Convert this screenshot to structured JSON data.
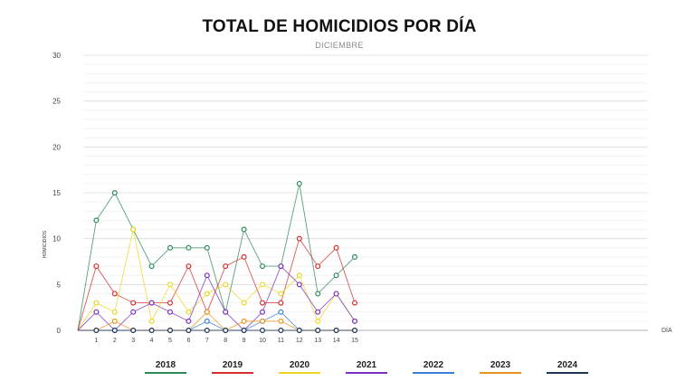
{
  "chart_data": {
    "type": "line",
    "title": "TOTAL DE HOMICIDIOS POR DÍA",
    "subtitle": "DICIEMBRE",
    "xlabel": "DÍA",
    "ylabel": "HOMICIDIOS",
    "ylim": [
      0,
      30
    ],
    "yticks": [
      0,
      5,
      10,
      15,
      20,
      25,
      30
    ],
    "x": [
      1,
      2,
      3,
      4,
      5,
      6,
      7,
      8,
      9,
      10,
      11,
      12,
      13,
      14,
      15
    ],
    "grid": true,
    "legend_position": "bottom",
    "series": [
      {
        "name": "2018",
        "color": "#2e8b57",
        "values": [
          12,
          15,
          11,
          7,
          9,
          9,
          9,
          2,
          11,
          7,
          7,
          16,
          4,
          6,
          8
        ]
      },
      {
        "name": "2019",
        "color": "#d62d2d",
        "values": [
          7,
          4,
          3,
          3,
          3,
          7,
          2,
          7,
          8,
          3,
          3,
          10,
          7,
          9,
          3
        ]
      },
      {
        "name": "2020",
        "color": "#ecd623",
        "values": [
          3,
          2,
          11,
          1,
          5,
          2,
          4,
          5,
          3,
          5,
          4,
          6,
          1,
          4,
          1
        ]
      },
      {
        "name": "2021",
        "color": "#7b2fbf",
        "values": [
          2,
          0,
          2,
          3,
          2,
          1,
          6,
          2,
          0,
          2,
          7,
          5,
          2,
          4,
          1
        ]
      },
      {
        "name": "2022",
        "color": "#3a7fd5",
        "values": [
          0,
          0,
          0,
          0,
          0,
          0,
          1,
          0,
          0,
          1,
          2,
          0,
          0,
          0,
          0
        ]
      },
      {
        "name": "2023",
        "color": "#e8951c",
        "values": [
          0,
          1,
          0,
          0,
          0,
          0,
          2,
          0,
          1,
          1,
          1,
          0,
          0,
          0,
          0
        ]
      },
      {
        "name": "2024",
        "color": "#1d3557",
        "values": [
          0,
          0,
          0,
          0,
          0,
          0,
          0,
          0,
          0,
          0,
          0,
          0,
          0,
          0,
          0
        ]
      }
    ]
  }
}
